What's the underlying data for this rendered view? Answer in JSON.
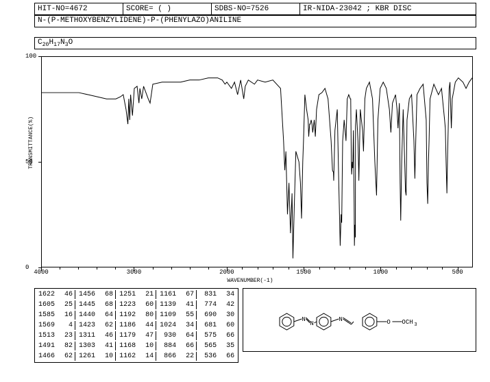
{
  "header": {
    "hit_no": "HIT-NO=4672",
    "score": "SCORE=  (  )",
    "sdbs_no": "SDBS-NO=7526",
    "method": "IR-NIDA-23042 ; KBR DISC"
  },
  "compound_name": "N-(P-METHOXYBENZYLIDENE)-P-(PHENYLAZO)ANILINE",
  "formula_html": "C<sub>20</sub>H<sub>17</sub>N<sub>3</sub>O",
  "chart": {
    "type": "line",
    "x_label": "WAVENUMBER(-1)",
    "y_label": "TRANSMITTANCE(%)",
    "xlim": [
      4000,
      400
    ],
    "ylim": [
      0,
      100
    ],
    "x_ticks": [
      4000,
      3000,
      2000,
      1500,
      1000,
      500
    ],
    "x_minor_step_above2000": 200,
    "x_minor_step_below2000": 100,
    "y_ticks": [
      0,
      50,
      100
    ],
    "background_color": "#ffffff",
    "line_color": "#000000",
    "line_width": 1,
    "spectrum": [
      [
        4000,
        83
      ],
      [
        3900,
        83
      ],
      [
        3800,
        83
      ],
      [
        3700,
        83
      ],
      [
        3600,
        83
      ],
      [
        3500,
        82
      ],
      [
        3400,
        81
      ],
      [
        3300,
        80
      ],
      [
        3200,
        80
      ],
      [
        3150,
        81
      ],
      [
        3120,
        82
      ],
      [
        3090,
        75
      ],
      [
        3070,
        68
      ],
      [
        3060,
        80
      ],
      [
        3050,
        70
      ],
      [
        3040,
        82
      ],
      [
        3020,
        72
      ],
      [
        3000,
        85
      ],
      [
        2970,
        86
      ],
      [
        2950,
        78
      ],
      [
        2940,
        85
      ],
      [
        2920,
        80
      ],
      [
        2900,
        86
      ],
      [
        2850,
        80
      ],
      [
        2830,
        78
      ],
      [
        2800,
        87
      ],
      [
        2700,
        88
      ],
      [
        2600,
        88
      ],
      [
        2500,
        88
      ],
      [
        2400,
        89
      ],
      [
        2300,
        89
      ],
      [
        2200,
        90
      ],
      [
        2100,
        90
      ],
      [
        2050,
        89
      ],
      [
        2020,
        87
      ],
      [
        2000,
        88
      ],
      [
        1970,
        85
      ],
      [
        1950,
        88
      ],
      [
        1930,
        82
      ],
      [
        1910,
        89
      ],
      [
        1890,
        80
      ],
      [
        1880,
        86
      ],
      [
        1860,
        89
      ],
      [
        1820,
        87
      ],
      [
        1800,
        89
      ],
      [
        1750,
        88
      ],
      [
        1700,
        89
      ],
      [
        1650,
        85
      ],
      [
        1630,
        60
      ],
      [
        1622,
        46
      ],
      [
        1615,
        55
      ],
      [
        1605,
        25
      ],
      [
        1595,
        40
      ],
      [
        1585,
        16
      ],
      [
        1575,
        35
      ],
      [
        1569,
        4
      ],
      [
        1560,
        30
      ],
      [
        1550,
        55
      ],
      [
        1530,
        50
      ],
      [
        1520,
        40
      ],
      [
        1513,
        23
      ],
      [
        1505,
        50
      ],
      [
        1500,
        60
      ],
      [
        1491,
        82
      ],
      [
        1480,
        75
      ],
      [
        1470,
        70
      ],
      [
        1466,
        62
      ],
      [
        1460,
        68
      ],
      [
        1456,
        68
      ],
      [
        1450,
        70
      ],
      [
        1445,
        68
      ],
      [
        1440,
        64
      ],
      [
        1430,
        70
      ],
      [
        1423,
        62
      ],
      [
        1415,
        75
      ],
      [
        1400,
        82
      ],
      [
        1380,
        83
      ],
      [
        1360,
        85
      ],
      [
        1340,
        80
      ],
      [
        1320,
        60
      ],
      [
        1311,
        46
      ],
      [
        1305,
        45
      ],
      [
        1303,
        41
      ],
      [
        1295,
        65
      ],
      [
        1280,
        75
      ],
      [
        1270,
        40
      ],
      [
        1261,
        10
      ],
      [
        1255,
        25
      ],
      [
        1251,
        21
      ],
      [
        1245,
        60
      ],
      [
        1235,
        70
      ],
      [
        1225,
        62
      ],
      [
        1223,
        60
      ],
      [
        1215,
        80
      ],
      [
        1205,
        82
      ],
      [
        1195,
        80
      ],
      [
        1192,
        80
      ],
      [
        1188,
        50
      ],
      [
        1186,
        44
      ],
      [
        1182,
        50
      ],
      [
        1179,
        47
      ],
      [
        1175,
        65
      ],
      [
        1170,
        30
      ],
      [
        1168,
        10
      ],
      [
        1165,
        20
      ],
      [
        1162,
        14
      ],
      [
        1161,
        67
      ],
      [
        1155,
        75
      ],
      [
        1145,
        60
      ],
      [
        1140,
        45
      ],
      [
        1139,
        41
      ],
      [
        1130,
        75
      ],
      [
        1115,
        65
      ],
      [
        1109,
        55
      ],
      [
        1100,
        80
      ],
      [
        1090,
        85
      ],
      [
        1070,
        88
      ],
      [
        1050,
        80
      ],
      [
        1035,
        50
      ],
      [
        1024,
        34
      ],
      [
        1015,
        70
      ],
      [
        1000,
        85
      ],
      [
        980,
        88
      ],
      [
        960,
        85
      ],
      [
        940,
        75
      ],
      [
        930,
        64
      ],
      [
        920,
        78
      ],
      [
        900,
        82
      ],
      [
        890,
        75
      ],
      [
        884,
        66
      ],
      [
        875,
        78
      ],
      [
        870,
        40
      ],
      [
        866,
        22
      ],
      [
        860,
        50
      ],
      [
        850,
        75
      ],
      [
        840,
        50
      ],
      [
        835,
        36
      ],
      [
        831,
        34
      ],
      [
        825,
        70
      ],
      [
        810,
        80
      ],
      [
        795,
        82
      ],
      [
        780,
        60
      ],
      [
        774,
        42
      ],
      [
        768,
        60
      ],
      [
        760,
        82
      ],
      [
        740,
        85
      ],
      [
        720,
        87
      ],
      [
        700,
        70
      ],
      [
        695,
        40
      ],
      [
        690,
        30
      ],
      [
        685,
        50
      ],
      [
        681,
        60
      ],
      [
        675,
        80
      ],
      [
        650,
        87
      ],
      [
        620,
        82
      ],
      [
        600,
        85
      ],
      [
        580,
        70
      ],
      [
        575,
        66
      ],
      [
        570,
        50
      ],
      [
        565,
        35
      ],
      [
        560,
        55
      ],
      [
        550,
        85
      ],
      [
        545,
        88
      ],
      [
        540,
        75
      ],
      [
        536,
        66
      ],
      [
        530,
        80
      ],
      [
        510,
        88
      ],
      [
        490,
        90
      ],
      [
        460,
        88
      ],
      [
        440,
        85
      ],
      [
        420,
        88
      ],
      [
        400,
        90
      ]
    ]
  },
  "peaks": {
    "columns": 5,
    "rows_per_col": 7,
    "data": [
      [
        [
          1622,
          46
        ],
        [
          1605,
          25
        ],
        [
          1585,
          16
        ],
        [
          1569,
          4
        ],
        [
          1513,
          23
        ],
        [
          1491,
          82
        ],
        [
          1466,
          62
        ]
      ],
      [
        [
          1456,
          68
        ],
        [
          1445,
          68
        ],
        [
          1440,
          64
        ],
        [
          1423,
          62
        ],
        [
          1311,
          46
        ],
        [
          1303,
          41
        ],
        [
          1261,
          10
        ]
      ],
      [
        [
          1251,
          21
        ],
        [
          1223,
          60
        ],
        [
          1192,
          80
        ],
        [
          1186,
          44
        ],
        [
          1179,
          47
        ],
        [
          1168,
          10
        ],
        [
          1162,
          14
        ]
      ],
      [
        [
          1161,
          67
        ],
        [
          1139,
          41
        ],
        [
          1109,
          55
        ],
        [
          1024,
          34
        ],
        [
          930,
          64
        ],
        [
          884,
          66
        ],
        [
          866,
          22
        ]
      ],
      [
        [
          831,
          34
        ],
        [
          774,
          42
        ],
        [
          690,
          30
        ],
        [
          681,
          60
        ],
        [
          575,
          66
        ],
        [
          565,
          35
        ],
        [
          536,
          66
        ]
      ]
    ]
  },
  "structure": {
    "och3_label": "OCH",
    "och3_sub": "3"
  },
  "colors": {
    "bg": "#ffffff",
    "fg": "#000000"
  }
}
